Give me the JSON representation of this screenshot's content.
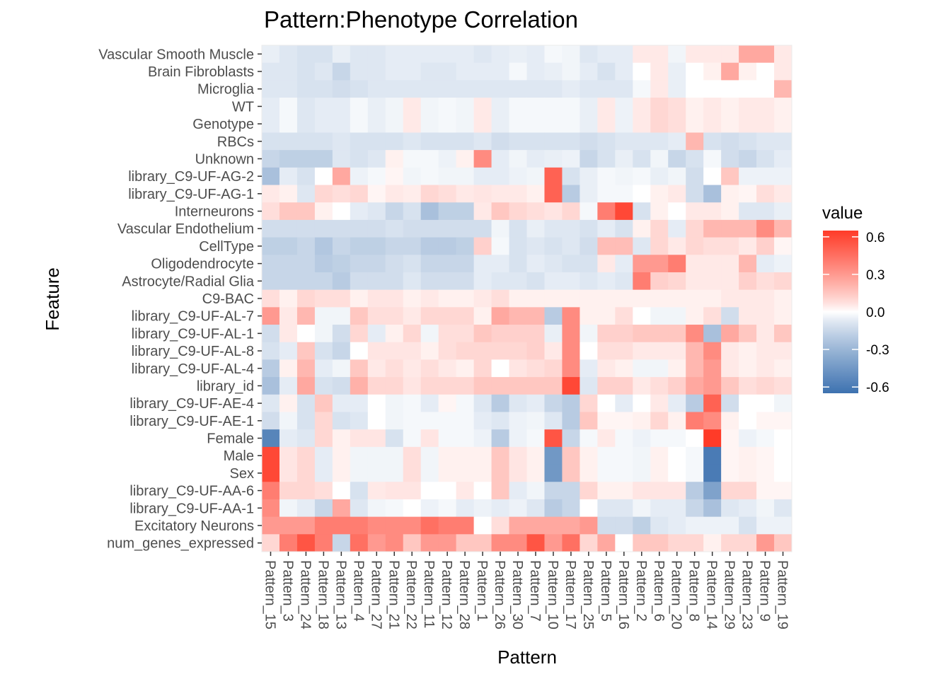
{
  "chart_data": {
    "type": "heatmap",
    "title": "Pattern:Phenotype Correlation",
    "xlabel": "Pattern",
    "ylabel": "Feature",
    "x": [
      "Pattern_15",
      "Pattern_3",
      "Pattern_24",
      "Pattern_18",
      "Pattern_13",
      "Pattern_4",
      "Pattern_27",
      "Pattern_21",
      "Pattern_22",
      "Pattern_11",
      "Pattern_12",
      "Pattern_28",
      "Pattern_1",
      "Pattern_26",
      "Pattern_30",
      "Pattern_7",
      "Pattern_10",
      "Pattern_17",
      "Pattern_25",
      "Pattern_5",
      "Pattern_16",
      "Pattern_2",
      "Pattern_6",
      "Pattern_20",
      "Pattern_8",
      "Pattern_14",
      "Pattern_29",
      "Pattern_23",
      "Pattern_9",
      "Pattern_19"
    ],
    "y": [
      "Vascular Smooth Muscle",
      "Brain Fibroblasts",
      "Microglia",
      "WT",
      "Genotype",
      "RBCs",
      "Unknown",
      "library_C9-UF-AG-2",
      "library_C9-UF-AG-1",
      "Interneurons",
      "Vascular Endothelium",
      "CellType",
      "Oligodendrocyte",
      "Astrocyte/Radial Glia",
      "C9-BAC",
      "library_C9-UF-AL-7",
      "library_C9-UF-AL-1",
      "library_C9-UF-AL-8",
      "library_C9-UF-AL-4",
      "library_id",
      "library_C9-UF-AE-4",
      "library_C9-UF-AE-1",
      "Female",
      "Male",
      "Sex",
      "library_C9-UF-AA-6",
      "library_C9-UF-AA-1",
      "Excitatory Neurons",
      "num_genes_expressed"
    ],
    "values": [
      [
        -0.05,
        -0.08,
        -0.1,
        -0.1,
        -0.05,
        -0.08,
        -0.08,
        -0.06,
        -0.06,
        -0.06,
        -0.06,
        -0.06,
        -0.08,
        -0.06,
        -0.05,
        -0.06,
        -0.02,
        -0.03,
        -0.08,
        -0.06,
        -0.06,
        0.05,
        0.05,
        -0.03,
        0.05,
        0.05,
        0.05,
        0.25,
        0.25,
        0.05
      ],
      [
        -0.08,
        -0.08,
        -0.1,
        -0.08,
        -0.15,
        -0.08,
        -0.08,
        -0.06,
        -0.06,
        -0.08,
        -0.08,
        -0.06,
        -0.06,
        -0.06,
        -0.02,
        -0.06,
        -0.05,
        -0.03,
        -0.06,
        -0.1,
        -0.06,
        0.0,
        0.05,
        -0.05,
        0.0,
        0.03,
        0.25,
        0.03,
        0.0,
        0.05
      ],
      [
        -0.08,
        -0.08,
        -0.1,
        -0.1,
        -0.12,
        -0.1,
        -0.08,
        -0.08,
        -0.08,
        -0.08,
        -0.08,
        -0.08,
        -0.08,
        -0.08,
        -0.08,
        -0.08,
        -0.08,
        -0.06,
        -0.08,
        -0.08,
        -0.08,
        -0.02,
        0.05,
        -0.05,
        0.0,
        0.0,
        0.0,
        0.0,
        0.0,
        0.2
      ],
      [
        -0.06,
        -0.02,
        -0.08,
        -0.06,
        -0.06,
        -0.02,
        -0.05,
        -0.03,
        0.05,
        -0.03,
        -0.02,
        -0.03,
        0.05,
        -0.05,
        -0.02,
        -0.02,
        -0.02,
        -0.02,
        -0.05,
        0.05,
        -0.04,
        0.05,
        0.1,
        0.08,
        0.03,
        0.05,
        0.03,
        0.05,
        0.05,
        0.03
      ],
      [
        -0.06,
        -0.02,
        -0.08,
        -0.06,
        -0.06,
        -0.02,
        -0.05,
        -0.03,
        0.05,
        -0.03,
        -0.02,
        -0.03,
        0.05,
        -0.05,
        -0.02,
        -0.02,
        -0.02,
        -0.02,
        -0.05,
        0.05,
        -0.04,
        0.05,
        0.1,
        0.08,
        0.03,
        0.05,
        0.03,
        0.05,
        0.05,
        0.03
      ],
      [
        -0.1,
        -0.1,
        -0.1,
        -0.1,
        -0.08,
        -0.1,
        -0.1,
        -0.1,
        -0.08,
        -0.1,
        -0.1,
        -0.1,
        -0.08,
        -0.12,
        -0.1,
        -0.1,
        -0.1,
        -0.1,
        -0.12,
        -0.1,
        -0.08,
        -0.08,
        -0.08,
        -0.06,
        0.2,
        -0.1,
        -0.12,
        -0.1,
        -0.08,
        -0.08
      ],
      [
        -0.15,
        -0.18,
        -0.18,
        -0.18,
        -0.08,
        -0.1,
        -0.08,
        0.03,
        -0.02,
        -0.02,
        -0.04,
        0.03,
        0.35,
        -0.06,
        -0.03,
        -0.06,
        -0.05,
        -0.04,
        -0.15,
        -0.1,
        -0.05,
        -0.1,
        -0.03,
        -0.15,
        -0.1,
        -0.02,
        -0.12,
        -0.15,
        -0.1,
        -0.06
      ],
      [
        -0.25,
        -0.06,
        -0.1,
        0.0,
        0.25,
        -0.04,
        -0.02,
        0.02,
        -0.03,
        -0.02,
        -0.03,
        -0.03,
        -0.06,
        -0.06,
        -0.04,
        -0.03,
        0.5,
        -0.1,
        -0.05,
        -0.02,
        -0.03,
        -0.02,
        -0.05,
        -0.03,
        -0.12,
        0.0,
        0.15,
        -0.04,
        -0.04,
        -0.04
      ],
      [
        0.05,
        0.03,
        -0.08,
        0.1,
        0.08,
        0.1,
        0.02,
        0.05,
        0.04,
        0.1,
        0.08,
        0.05,
        0.06,
        0.05,
        0.05,
        0.03,
        0.5,
        -0.2,
        -0.05,
        -0.02,
        -0.02,
        0.0,
        0.03,
        0.05,
        -0.12,
        -0.25,
        0.03,
        0.02,
        0.08,
        0.05
      ],
      [
        0.08,
        0.15,
        0.15,
        0.03,
        0.0,
        -0.06,
        -0.08,
        -0.15,
        -0.1,
        -0.25,
        -0.18,
        -0.18,
        0.05,
        0.15,
        0.1,
        0.08,
        0.06,
        0.1,
        -0.02,
        0.4,
        0.6,
        -0.1,
        0.03,
        0.0,
        0.05,
        0.05,
        0.03,
        -0.08,
        -0.08,
        -0.05
      ],
      [
        -0.12,
        -0.12,
        -0.12,
        -0.12,
        -0.12,
        -0.12,
        -0.12,
        -0.1,
        -0.12,
        -0.12,
        -0.12,
        -0.12,
        -0.12,
        -0.03,
        -0.1,
        -0.05,
        -0.08,
        -0.08,
        -0.1,
        -0.06,
        -0.1,
        0.03,
        0.1,
        -0.06,
        0.1,
        0.2,
        0.2,
        0.2,
        0.35,
        0.2
      ],
      [
        -0.18,
        -0.18,
        -0.15,
        -0.22,
        -0.15,
        -0.18,
        -0.18,
        -0.15,
        -0.15,
        -0.2,
        -0.2,
        -0.18,
        0.12,
        -0.02,
        -0.1,
        -0.08,
        -0.1,
        -0.08,
        -0.12,
        0.18,
        0.18,
        -0.08,
        0.1,
        0.05,
        0.1,
        0.08,
        0.08,
        0.05,
        0.12,
        0.02
      ],
      [
        -0.15,
        -0.15,
        -0.15,
        -0.2,
        -0.18,
        -0.15,
        -0.15,
        -0.12,
        -0.1,
        -0.15,
        -0.15,
        -0.15,
        -0.06,
        -0.06,
        -0.1,
        -0.06,
        -0.08,
        -0.1,
        -0.1,
        0.05,
        -0.06,
        0.3,
        0.3,
        0.4,
        0.05,
        0.05,
        0.05,
        0.2,
        -0.06,
        -0.04
      ],
      [
        -0.15,
        -0.15,
        -0.15,
        -0.15,
        -0.2,
        -0.12,
        -0.12,
        -0.12,
        -0.08,
        -0.12,
        -0.12,
        -0.12,
        -0.06,
        -0.08,
        -0.08,
        -0.1,
        -0.06,
        -0.06,
        -0.08,
        -0.06,
        -0.08,
        0.4,
        0.12,
        0.1,
        0.05,
        0.05,
        0.05,
        0.12,
        0.08,
        0.1
      ],
      [
        0.08,
        0.03,
        0.1,
        0.08,
        0.08,
        0.03,
        0.06,
        0.06,
        0.03,
        0.05,
        0.03,
        0.03,
        0.05,
        0.08,
        0.03,
        0.03,
        0.03,
        0.03,
        0.03,
        0.03,
        0.03,
        0.03,
        0.03,
        0.03,
        0.03,
        0.03,
        0.05,
        0.05,
        0.05,
        0.03
      ],
      [
        0.3,
        0.05,
        0.2,
        -0.03,
        -0.03,
        0.15,
        0.08,
        0.08,
        0.05,
        0.1,
        0.1,
        0.1,
        0.03,
        0.25,
        0.2,
        0.2,
        -0.2,
        0.35,
        0.03,
        0.03,
        0.08,
        0.0,
        -0.03,
        -0.03,
        0.03,
        0.08,
        -0.12,
        0.05,
        0.05,
        0.03
      ],
      [
        -0.12,
        0.05,
        0.0,
        -0.03,
        -0.12,
        0.1,
        -0.06,
        0.03,
        0.1,
        -0.03,
        0.08,
        0.08,
        0.15,
        0.12,
        0.12,
        0.12,
        -0.05,
        0.35,
        -0.03,
        0.12,
        0.12,
        0.15,
        0.15,
        0.15,
        0.35,
        -0.25,
        0.25,
        0.15,
        0.05,
        0.15
      ],
      [
        -0.1,
        -0.06,
        0.15,
        -0.1,
        -0.15,
        0.0,
        0.06,
        0.06,
        0.06,
        0.03,
        0.08,
        0.1,
        0.1,
        0.1,
        0.1,
        0.12,
        0.05,
        0.35,
        0.0,
        0.08,
        0.08,
        0.05,
        0.05,
        0.05,
        0.2,
        0.35,
        0.05,
        0.03,
        0.05,
        0.05
      ],
      [
        -0.2,
        0.03,
        0.2,
        -0.06,
        -0.03,
        0.15,
        0.05,
        0.08,
        0.05,
        0.08,
        0.05,
        0.03,
        0.1,
        0.0,
        0.06,
        0.08,
        0.1,
        0.35,
        -0.06,
        0.05,
        0.03,
        -0.03,
        -0.03,
        0.03,
        0.2,
        0.3,
        0.05,
        0.03,
        0.05,
        0.03
      ],
      [
        -0.25,
        -0.06,
        0.25,
        -0.1,
        -0.12,
        0.22,
        0.1,
        0.1,
        0.06,
        0.1,
        0.1,
        0.1,
        0.15,
        0.15,
        0.15,
        0.15,
        0.15,
        0.6,
        -0.08,
        0.12,
        0.12,
        0.05,
        0.08,
        0.12,
        0.25,
        0.3,
        0.15,
        0.08,
        0.1,
        0.08
      ],
      [
        -0.08,
        0.03,
        -0.1,
        0.15,
        -0.06,
        -0.06,
        0.0,
        -0.03,
        -0.02,
        -0.06,
        0.02,
        -0.02,
        -0.08,
        -0.2,
        -0.08,
        -0.06,
        -0.15,
        -0.2,
        0.1,
        0.0,
        -0.06,
        0.0,
        0.05,
        -0.06,
        -0.2,
        0.5,
        -0.12,
        0.0,
        0.0,
        -0.03
      ],
      [
        -0.12,
        -0.03,
        -0.1,
        0.1,
        -0.1,
        -0.08,
        0.0,
        -0.03,
        -0.02,
        -0.02,
        -0.02,
        -0.02,
        -0.06,
        -0.08,
        -0.04,
        -0.03,
        -0.08,
        -0.2,
        0.15,
        0.02,
        0.02,
        0.03,
        0.1,
        0.03,
        0.4,
        0.35,
        0.03,
        0.0,
        0.02,
        0.02
      ],
      [
        -0.55,
        -0.06,
        -0.08,
        0.1,
        0.03,
        0.06,
        0.06,
        -0.1,
        -0.02,
        0.06,
        -0.02,
        -0.02,
        -0.04,
        -0.2,
        -0.04,
        -0.02,
        0.55,
        -0.15,
        -0.02,
        0.05,
        -0.02,
        -0.04,
        -0.02,
        -0.02,
        0.0,
        0.65,
        0.02,
        -0.04,
        -0.02,
        0.0
      ],
      [
        0.6,
        0.06,
        0.1,
        -0.06,
        0.03,
        -0.03,
        -0.03,
        -0.03,
        0.08,
        -0.03,
        0.03,
        0.03,
        0.03,
        0.15,
        0.06,
        0.03,
        -0.45,
        0.15,
        0.03,
        -0.02,
        -0.02,
        -0.03,
        0.03,
        0.0,
        -0.02,
        -0.6,
        0.02,
        0.03,
        0.02,
        0.0
      ],
      [
        0.6,
        0.06,
        0.1,
        -0.06,
        0.03,
        -0.03,
        -0.03,
        -0.03,
        0.08,
        -0.03,
        0.03,
        0.03,
        0.03,
        0.15,
        0.06,
        0.03,
        -0.45,
        0.15,
        0.03,
        -0.02,
        -0.02,
        -0.03,
        0.03,
        0.0,
        -0.02,
        -0.6,
        0.02,
        0.03,
        0.02,
        0.0
      ],
      [
        0.4,
        0.1,
        0.1,
        0.08,
        0.0,
        -0.1,
        0.05,
        0.06,
        0.06,
        0.0,
        0.0,
        0.05,
        0.0,
        0.15,
        -0.06,
        -0.03,
        -0.15,
        -0.15,
        0.1,
        0.03,
        0.03,
        0.06,
        0.06,
        0.06,
        -0.2,
        -0.4,
        0.1,
        0.1,
        0.02,
        0.02
      ],
      [
        0.35,
        -0.03,
        -0.06,
        -0.15,
        0.25,
        -0.08,
        -0.03,
        -0.02,
        0.0,
        -0.04,
        -0.02,
        -0.06,
        -0.04,
        -0.06,
        -0.04,
        -0.08,
        -0.2,
        -0.15,
        0.0,
        -0.08,
        -0.08,
        -0.03,
        -0.06,
        -0.06,
        -0.15,
        -0.25,
        -0.08,
        -0.06,
        -0.03,
        -0.08
      ],
      [
        0.3,
        0.3,
        0.3,
        0.4,
        0.4,
        0.4,
        0.35,
        0.35,
        0.35,
        0.45,
        0.4,
        0.4,
        0.0,
        0.08,
        0.25,
        0.25,
        0.25,
        0.25,
        0.3,
        -0.12,
        -0.12,
        -0.18,
        -0.08,
        -0.06,
        -0.04,
        -0.04,
        -0.04,
        -0.1,
        -0.04,
        -0.04
      ],
      [
        0.1,
        0.4,
        0.55,
        0.4,
        -0.15,
        0.45,
        0.3,
        0.35,
        0.15,
        0.3,
        0.3,
        0.15,
        0.15,
        0.35,
        0.35,
        0.55,
        0.3,
        0.45,
        0.1,
        0.25,
        0.0,
        0.15,
        0.15,
        0.1,
        0.1,
        0.03,
        0.1,
        0.1,
        0.3,
        0.15
      ]
    ],
    "zlim": [
      -0.65,
      0.65
    ],
    "colors": {
      "low": "#3d72b0",
      "mid": "#ffffff",
      "high": "#ff3b28",
      "na": "#ffffff"
    },
    "legend": {
      "title": "value",
      "position": "right",
      "ticks": [
        0.6,
        0.3,
        0.0,
        -0.3,
        -0.6
      ],
      "tick_labels": [
        "0.6",
        "0.3",
        "0.0",
        "-0.3",
        "-0.6"
      ]
    },
    "grid": true
  }
}
